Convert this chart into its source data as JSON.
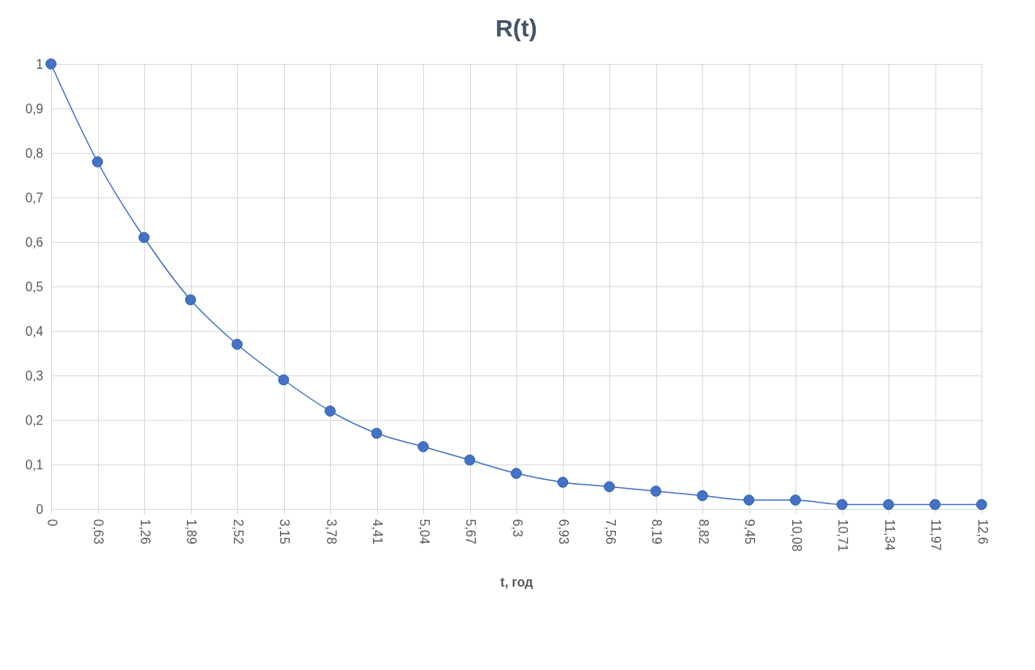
{
  "chart_data": {
    "type": "line",
    "title": "R(t)",
    "xlabel": "t, год",
    "categories": [
      "0",
      "0,63",
      "1,26",
      "1,89",
      "2,52",
      "3,15",
      "3,78",
      "4,41",
      "5,04",
      "5,67",
      "6,3",
      "6,93",
      "7,56",
      "8,19",
      "8,82",
      "9,45",
      "10,08",
      "10,71",
      "11,34",
      "11,97",
      "12,6"
    ],
    "series": [
      {
        "color": "#4472c4",
        "values": [
          1.0,
          0.78,
          0.61,
          0.47,
          0.37,
          0.29,
          0.22,
          0.17,
          0.14,
          0.11,
          0.08,
          0.06,
          0.05,
          0.04,
          0.03,
          0.02,
          0.02,
          0.01,
          0.01,
          0.01,
          0.01
        ]
      }
    ],
    "ylim": [
      0,
      1
    ],
    "yticks": [
      0,
      {
        "value": 0.1,
        "label": "0,1"
      },
      {
        "value": 0.2,
        "label": "0,2"
      },
      {
        "value": 0.3,
        "label": "0,3"
      },
      {
        "value": 0.4,
        "label": "0,4"
      },
      {
        "value": 0.5,
        "label": "0,5"
      },
      {
        "value": 0.6,
        "label": "0,6"
      },
      {
        "value": 0.7,
        "label": "0,7"
      },
      {
        "value": 0.8,
        "label": "0,8"
      },
      {
        "value": 0.9,
        "label": "0,9"
      },
      1
    ],
    "grid": true,
    "marker": "circle",
    "line_style": "solid"
  }
}
